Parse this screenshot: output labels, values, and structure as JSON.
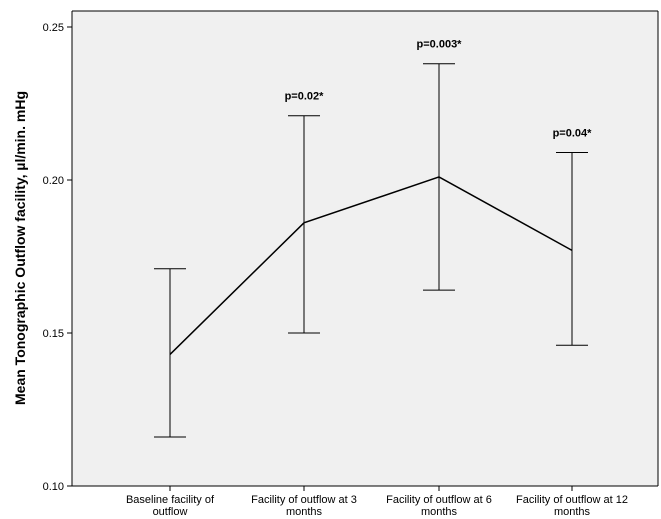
{
  "chart_data": {
    "type": "line",
    "ylabel": "Mean Tonographic Outflow facility, µl/min. mHg",
    "xlabel": "",
    "ylim": [
      0.1,
      0.25
    ],
    "y_ticks": [
      "0.10",
      "0.15",
      "0.20",
      "0.25"
    ],
    "y_tick_values": [
      0.1,
      0.15,
      0.2,
      0.25
    ],
    "grid": false,
    "plot_background": "#f0f0f0",
    "line_color": "#000000",
    "categories": [
      [
        "Baseline facility of",
        "outflow"
      ],
      [
        "Facility of outflow at 3",
        "months"
      ],
      [
        "Facility of outflow at 6",
        "months"
      ],
      [
        "Facility of outflow at 12",
        "months"
      ]
    ],
    "series": [
      {
        "values": [
          0.143,
          0.186,
          0.201,
          0.177
        ],
        "error_upper": [
          0.171,
          0.221,
          0.238,
          0.209
        ],
        "error_lower": [
          0.116,
          0.15,
          0.164,
          0.146
        ]
      }
    ],
    "annotations": [
      "",
      "p=0.02*",
      "p=0.003*",
      "p=0.04*"
    ]
  }
}
